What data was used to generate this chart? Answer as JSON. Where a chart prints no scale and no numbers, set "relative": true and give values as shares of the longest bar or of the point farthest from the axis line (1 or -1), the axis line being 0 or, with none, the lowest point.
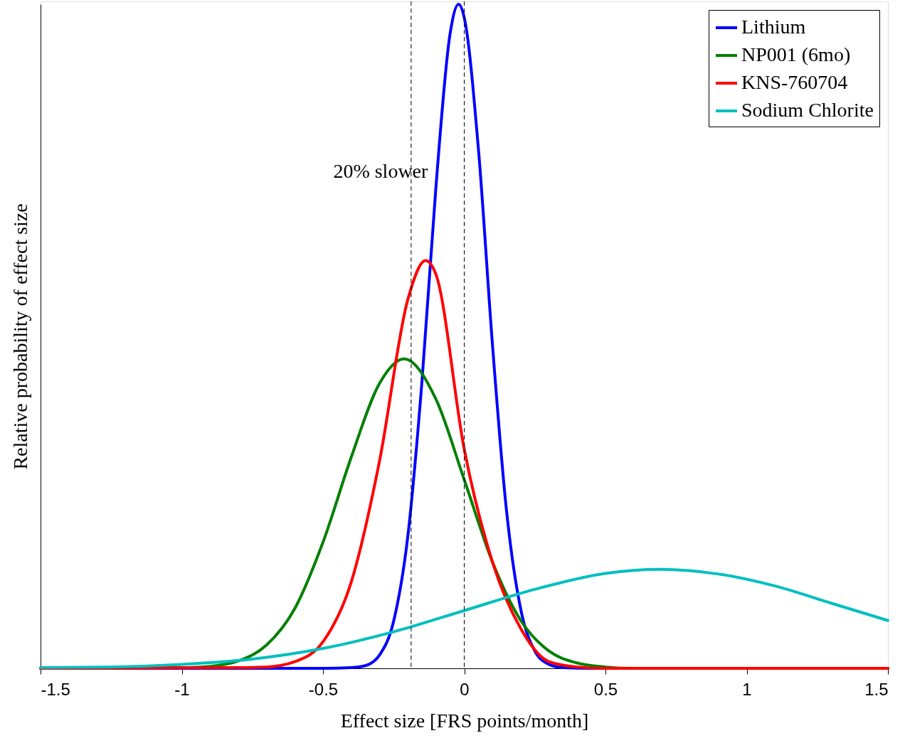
{
  "chart_data": {
    "type": "line",
    "relative": true,
    "xlabel": "Effect size [FRS points/month]",
    "ylabel": "Relative probability of effect size",
    "xlim": [
      -1.5,
      1.5
    ],
    "xticks": [
      -1.5,
      -1,
      -0.5,
      0,
      0.5,
      1,
      1.5
    ],
    "grid": false,
    "legend": "top right",
    "marker": "none",
    "line_style": "solid",
    "series": [
      {
        "name": "Lithium",
        "color": "#0000ff",
        "x": [
          -1.5,
          -0.5,
          -0.4,
          -0.35,
          -0.3,
          -0.25,
          -0.2,
          -0.15,
          -0.1,
          -0.05,
          -0.02,
          0,
          0.05,
          0.1,
          0.15,
          0.2,
          0.25,
          0.3,
          0.35,
          0.45,
          1.5
        ],
        "values": [
          0,
          0,
          0.001,
          0.004,
          0.02,
          0.071,
          0.198,
          0.43,
          0.726,
          0.956,
          1,
          0.98,
          0.783,
          0.487,
          0.236,
          0.089,
          0.026,
          0.006,
          0.001,
          0,
          0
        ]
      },
      {
        "name": "NP001 (6mo)",
        "color": "#008000",
        "x": [
          -1.5,
          -1.0,
          -0.9,
          -0.8,
          -0.7,
          -0.6,
          -0.5,
          -0.4,
          -0.3,
          -0.213,
          -0.1,
          0,
          0.1,
          0.2,
          0.3,
          0.4,
          0.5,
          0.6,
          1.5
        ],
        "values": [
          0,
          0.001,
          0.003,
          0.011,
          0.035,
          0.09,
          0.19,
          0.318,
          0.429,
          0.466,
          0.405,
          0.284,
          0.16,
          0.072,
          0.026,
          0.008,
          0.002,
          0,
          0
        ]
      },
      {
        "name": "KNS-760704",
        "color": "#ff0000",
        "x": [
          -1.5,
          -0.8,
          -0.7,
          -0.6,
          -0.5,
          -0.4,
          -0.3,
          -0.2,
          -0.137,
          -0.1,
          0,
          0.1,
          0.2,
          0.3,
          0.4,
          0.5,
          1.5
        ],
        "values": [
          0,
          0.001,
          0.002,
          0.01,
          0.04,
          0.13,
          0.312,
          0.555,
          0.614,
          0.593,
          0.33,
          0.16,
          0.06,
          0.01,
          0.002,
          0,
          0
        ]
      },
      {
        "name": "Sodium Chlorite",
        "color": "#00bfbf",
        "x": [
          -1.5,
          -1.25,
          -1.0,
          -0.75,
          -0.5,
          -0.25,
          0,
          0.25,
          0.5,
          0.694,
          0.9,
          1.1,
          1.3,
          1.5
        ],
        "values": [
          0.001,
          0.002,
          0.006,
          0.014,
          0.03,
          0.055,
          0.087,
          0.119,
          0.143,
          0.149,
          0.142,
          0.124,
          0.098,
          0.072
        ]
      }
    ],
    "ref_lines": [
      {
        "axis": "x",
        "value": -0.188,
        "line_style": "dashed",
        "label": "20% slower"
      },
      {
        "axis": "x",
        "value": 0,
        "line_style": "dashed"
      }
    ]
  }
}
